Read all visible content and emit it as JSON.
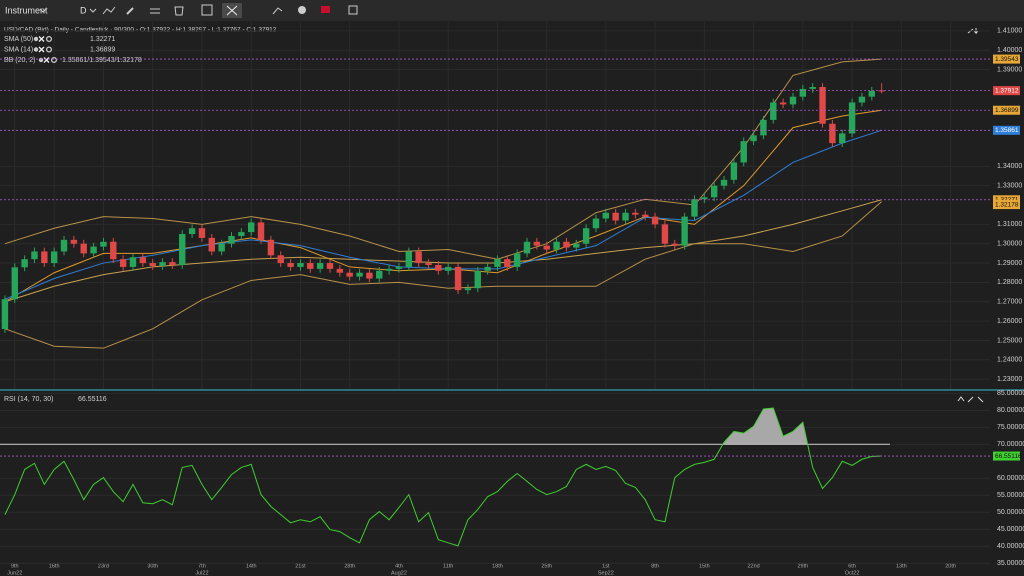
{
  "toolbar": {
    "instrument": "Instrument",
    "period": "D"
  },
  "chart_data": [
    {
      "type": "candlestick",
      "title": "USD/CAD (Bid) - Daily - Candlestick · 90/300 - O:1.37922 - H:1.38297 - L:1.37767 - C:1.37912",
      "up_color": "#26a65b",
      "down_color": "#e04848",
      "open": [
        1.2559,
        1.2713,
        1.2878,
        1.292,
        1.296,
        1.29,
        1.296,
        1.302,
        1.3,
        1.295,
        1.2985,
        1.301,
        1.292,
        1.288,
        1.293,
        1.29,
        1.2885,
        1.2905,
        1.289,
        1.305,
        1.308,
        1.303,
        1.296,
        1.3,
        1.304,
        1.306,
        1.311,
        1.302,
        1.294,
        1.29,
        1.288,
        1.29,
        1.287,
        1.29,
        1.287,
        1.285,
        1.283,
        1.285,
        1.282,
        1.286,
        1.287,
        1.288,
        1.296,
        1.29,
        1.289,
        1.286,
        1.288,
        1.276,
        1.277,
        1.286,
        1.288,
        1.292,
        1.288,
        1.295,
        1.301,
        1.299,
        1.297,
        1.301,
        1.298,
        1.3,
        1.308,
        1.313,
        1.316,
        1.312,
        1.316,
        1.315,
        1.314,
        1.31,
        1.3,
        1.299,
        1.314,
        1.323,
        1.324,
        1.33,
        1.333,
        1.342,
        1.353,
        1.356,
        1.364,
        1.373,
        1.372,
        1.376,
        1.38,
        1.381,
        1.362,
        1.352,
        1.357,
        1.373,
        1.376,
        1.37922
      ],
      "high": [
        1.2733,
        1.2898,
        1.294,
        1.298,
        1.298,
        1.298,
        1.304,
        1.304,
        1.302,
        1.3005,
        1.303,
        1.303,
        1.294,
        1.295,
        1.295,
        1.292,
        1.2925,
        1.2925,
        1.307,
        1.31,
        1.31,
        1.305,
        1.302,
        1.306,
        1.308,
        1.313,
        1.313,
        1.304,
        1.296,
        1.292,
        1.292,
        1.292,
        1.292,
        1.292,
        1.289,
        1.287,
        1.287,
        1.287,
        1.288,
        1.289,
        1.29,
        1.298,
        1.298,
        1.292,
        1.291,
        1.29,
        1.29,
        1.279,
        1.288,
        1.29,
        1.294,
        1.294,
        1.297,
        1.303,
        1.303,
        1.301,
        1.303,
        1.303,
        1.302,
        1.31,
        1.315,
        1.318,
        1.318,
        1.318,
        1.318,
        1.317,
        1.316,
        1.312,
        1.302,
        1.316,
        1.325,
        1.326,
        1.332,
        1.335,
        1.344,
        1.355,
        1.358,
        1.366,
        1.375,
        1.375,
        1.378,
        1.382,
        1.383,
        1.383,
        1.364,
        1.359,
        1.375,
        1.378,
        1.381,
        1.38297
      ],
      "low": [
        1.2539,
        1.2693,
        1.2858,
        1.29,
        1.288,
        1.288,
        1.294,
        1.298,
        1.293,
        1.293,
        1.2965,
        1.29,
        1.286,
        1.286,
        1.288,
        1.2865,
        1.2865,
        1.287,
        1.287,
        1.303,
        1.301,
        1.294,
        1.294,
        1.298,
        1.302,
        1.304,
        1.3,
        1.292,
        1.288,
        1.286,
        1.286,
        1.285,
        1.285,
        1.285,
        1.283,
        1.281,
        1.281,
        1.28,
        1.28,
        1.284,
        1.285,
        1.286,
        1.288,
        1.287,
        1.284,
        1.284,
        1.274,
        1.274,
        1.275,
        1.284,
        1.286,
        1.286,
        1.286,
        1.293,
        1.297,
        1.295,
        1.295,
        1.296,
        1.296,
        1.298,
        1.306,
        1.311,
        1.31,
        1.31,
        1.313,
        1.312,
        1.308,
        1.298,
        1.297,
        1.297,
        1.312,
        1.321,
        1.322,
        1.328,
        1.331,
        1.34,
        1.351,
        1.354,
        1.362,
        1.37,
        1.37,
        1.374,
        1.378,
        1.36,
        1.35,
        1.35,
        1.355,
        1.371,
        1.374,
        1.37767
      ],
      "close": [
        1.2713,
        1.2878,
        1.292,
        1.296,
        1.29,
        1.296,
        1.302,
        1.3,
        1.295,
        1.2985,
        1.301,
        1.292,
        1.288,
        1.293,
        1.29,
        1.2885,
        1.2905,
        1.289,
        1.305,
        1.308,
        1.303,
        1.296,
        1.3,
        1.304,
        1.306,
        1.311,
        1.302,
        1.294,
        1.29,
        1.288,
        1.29,
        1.287,
        1.29,
        1.287,
        1.285,
        1.283,
        1.285,
        1.282,
        1.286,
        1.287,
        1.288,
        1.296,
        1.29,
        1.289,
        1.286,
        1.288,
        1.276,
        1.277,
        1.286,
        1.288,
        1.292,
        1.288,
        1.295,
        1.301,
        1.299,
        1.297,
        1.301,
        1.298,
        1.3,
        1.308,
        1.313,
        1.316,
        1.312,
        1.316,
        1.315,
        1.314,
        1.31,
        1.3,
        1.299,
        1.314,
        1.323,
        1.324,
        1.33,
        1.333,
        1.342,
        1.353,
        1.356,
        1.364,
        1.373,
        1.372,
        1.376,
        1.38,
        1.381,
        1.362,
        1.352,
        1.357,
        1.373,
        1.376,
        1.379,
        1.37912
      ],
      "series": [
        {
          "name": "SMA (50)",
          "legend_value": "1.32271",
          "color": "#c9a24e",
          "x": [
            0,
            5,
            10,
            15,
            20,
            25,
            30,
            35,
            40,
            45,
            50,
            55,
            60,
            65,
            70,
            75,
            80,
            85,
            89
          ],
          "values": [
            1.27,
            1.278,
            1.284,
            1.288,
            1.29,
            1.292,
            1.293,
            1.292,
            1.291,
            1.29,
            1.29,
            1.292,
            1.295,
            1.298,
            1.3,
            1.304,
            1.31,
            1.317,
            1.32271
          ]
        },
        {
          "name": "SMA (14)",
          "legend_value": "1.36899",
          "color": "#e09a2c",
          "x": [
            0,
            5,
            10,
            15,
            20,
            25,
            30,
            35,
            40,
            45,
            50,
            55,
            60,
            65,
            70,
            75,
            80,
            85,
            89
          ],
          "values": [
            1.27,
            1.285,
            1.295,
            1.295,
            1.299,
            1.303,
            1.298,
            1.288,
            1.286,
            1.287,
            1.285,
            1.295,
            1.304,
            1.314,
            1.31,
            1.33,
            1.36,
            1.366,
            1.36899
          ]
        },
        {
          "name": "BB (20, 2)",
          "legend_value": "1.35861/1.39543/1.32178",
          "color": "#2f7ed8",
          "band_color": "#b8924a",
          "x": [
            0,
            5,
            10,
            15,
            20,
            25,
            30,
            35,
            40,
            45,
            50,
            55,
            60,
            65,
            70,
            75,
            80,
            85,
            89
          ],
          "values": [
            1.2713,
            1.282,
            1.29,
            1.294,
            1.299,
            1.302,
            1.299,
            1.293,
            1.288,
            1.287,
            1.287,
            1.293,
            1.299,
            1.3136,
            1.312,
            1.325,
            1.342,
            1.352,
            1.35861
          ],
          "upper": [
            1.3,
            1.308,
            1.314,
            1.313,
            1.31,
            1.314,
            1.31,
            1.304,
            1.296,
            1.297,
            1.292,
            1.3,
            1.316,
            1.323,
            1.32,
            1.35,
            1.387,
            1.394,
            1.39543
          ],
          "lower": [
            1.256,
            1.247,
            1.246,
            1.256,
            1.271,
            1.281,
            1.284,
            1.279,
            1.28,
            1.277,
            1.278,
            1.278,
            1.278,
            1.292,
            1.3,
            1.3,
            1.296,
            1.304,
            1.32178
          ]
        }
      ],
      "xlim": [
        -0.5,
        100
      ],
      "ylim": [
        1.2249,
        1.4146
      ],
      "yticks": [
        {
          "value": 1.41,
          "label": "1.41000"
        },
        {
          "value": 1.4,
          "label": "1.40000"
        },
        {
          "value": 1.39,
          "label": "1.39000"
        },
        {
          "value": 1.34,
          "label": "1.34000"
        },
        {
          "value": 1.33,
          "label": "1.33000"
        },
        {
          "value": 1.31,
          "label": "1.31000"
        },
        {
          "value": 1.3,
          "label": "1.30000"
        },
        {
          "value": 1.29,
          "label": "1.29000"
        },
        {
          "value": 1.28,
          "label": "1.28000"
        },
        {
          "value": 1.27,
          "label": "1.27000"
        },
        {
          "value": 1.26,
          "label": "1.26000"
        },
        {
          "value": 1.25,
          "label": "1.25000"
        },
        {
          "value": 1.24,
          "label": "1.24000"
        },
        {
          "value": 1.23,
          "label": "1.23000"
        }
      ],
      "xticks": [
        {
          "value": 1,
          "label": "9th"
        },
        {
          "value": 5,
          "label": "16th"
        },
        {
          "value": 10,
          "label": "23rd"
        },
        {
          "value": 15,
          "label": "30th"
        },
        {
          "value": 20,
          "label": "7th"
        },
        {
          "value": 25,
          "label": "14th"
        },
        {
          "value": 30,
          "label": "21st"
        },
        {
          "value": 35,
          "label": "28th"
        },
        {
          "value": 40,
          "label": "4th"
        },
        {
          "value": 45,
          "label": "11th"
        },
        {
          "value": 50,
          "label": "18th"
        },
        {
          "value": 55,
          "label": "25th"
        },
        {
          "value": 61,
          "label": "1st"
        },
        {
          "value": 66,
          "label": "8th"
        },
        {
          "value": 71,
          "label": "15th"
        },
        {
          "value": 76,
          "label": "22nd"
        },
        {
          "value": 81,
          "label": "29th"
        },
        {
          "value": 86,
          "label": "6th"
        },
        {
          "value": 91,
          "label": "13th"
        },
        {
          "value": 96,
          "label": "20th"
        }
      ],
      "xticks_months": [
        {
          "value": 1,
          "label": "Jun22"
        },
        {
          "value": 20,
          "label": "Jul22"
        },
        {
          "value": 40,
          "label": "Aug22"
        },
        {
          "value": 61,
          "label": "Sep22"
        },
        {
          "value": 86,
          "label": "Oct22"
        }
      ],
      "grid": true
    },
    {
      "type": "line",
      "title": "RSI (14, 70, 30)",
      "legend_value": "66.55116",
      "color": "#3fcf2f",
      "fill_color": "#a8a8a8",
      "values": [
        49.3,
        55.2,
        62.6,
        64.4,
        58.2,
        62.6,
        65.0,
        59.6,
        53.7,
        58.2,
        60.2,
        56.1,
        53.1,
        58.2,
        52.8,
        52.5,
        53.7,
        52.2,
        63.2,
        63.8,
        58.2,
        53.7,
        57.3,
        61.1,
        63.2,
        64.1,
        55.2,
        51.7,
        49.3,
        46.9,
        47.8,
        47.2,
        48.7,
        44.9,
        44.3,
        42.5,
        41.0,
        47.8,
        50.2,
        47.8,
        51.4,
        55.2,
        47.2,
        49.9,
        41.9,
        41.0,
        40.1,
        47.8,
        50.8,
        54.6,
        56.1,
        59.1,
        61.4,
        59.1,
        56.7,
        55.2,
        56.1,
        57.6,
        62.6,
        64.1,
        62.6,
        63.5,
        62.3,
        58.5,
        57.3,
        53.7,
        47.8,
        47.2,
        60.2,
        62.6,
        64.1,
        64.7,
        65.6,
        70.6,
        73.8,
        73.3,
        75.3,
        80.4,
        80.7,
        72.4,
        73.8,
        76.5,
        63.2,
        57.0,
        60.2,
        65.0,
        63.8,
        65.6,
        66.4,
        66.55116
      ],
      "levels": [
        70
      ],
      "xlim": [
        -0.5,
        100
      ],
      "ylim": [
        33.0,
        85.7
      ],
      "yticks": [
        {
          "value": 85,
          "label": "85.00000"
        },
        {
          "value": 80,
          "label": "80.00000"
        },
        {
          "value": 75,
          "label": "75.00000"
        },
        {
          "value": 70,
          "label": "70.00000"
        },
        {
          "value": 60,
          "label": "60.00000"
        },
        {
          "value": 55,
          "label": "55.00000"
        },
        {
          "value": 50,
          "label": "50.00000"
        },
        {
          "value": 45,
          "label": "45.00000"
        },
        {
          "value": 40,
          "label": "40.00000"
        },
        {
          "value": 35,
          "label": "35.00000"
        }
      ],
      "grid": true
    }
  ]
}
